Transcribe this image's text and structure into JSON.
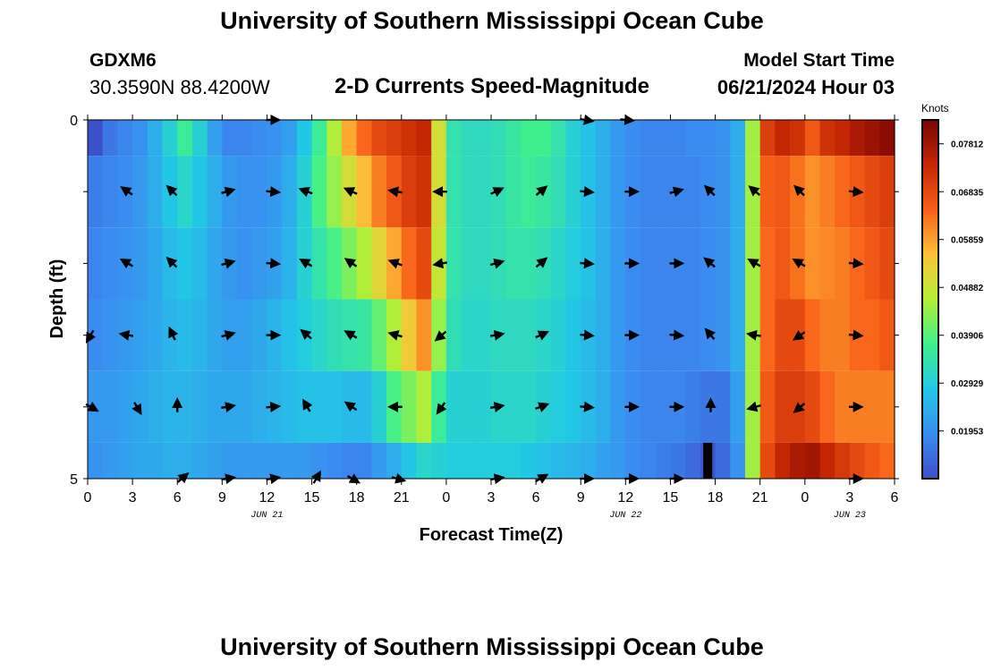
{
  "page": {
    "title": "University of Southern Mississippi Ocean Cube",
    "bottom_title": "University of Southern Mississippi Ocean Cube",
    "station_id": "GDXM6",
    "station_coords": "30.3590N  88.4200W",
    "subtitle": "2-D Currents Speed-Magnitude",
    "model_start_label": "Model Start Time",
    "model_start_value": "06/21/2024 Hour 03"
  },
  "chart_data": {
    "type": "heatmap",
    "title": "2-D Currents Speed-Magnitude",
    "xlabel": "Forecast Time(Z)",
    "ylabel": "Depth (ft)",
    "x_range_hours": [
      0,
      54
    ],
    "y_range": [
      0,
      5
    ],
    "y_tick_labels": [
      "0",
      "5"
    ],
    "x_tick_labels": [
      "0",
      "3",
      "6",
      "9",
      "12",
      "15",
      "18",
      "21",
      "0",
      "3",
      "6",
      "9",
      "12",
      "15",
      "18",
      "21",
      "0",
      "3",
      "6"
    ],
    "date_labels": [
      {
        "text": "JUN 21",
        "hour": 12
      },
      {
        "text": "JUN 22",
        "hour": 36
      },
      {
        "text": "JUN 23",
        "hour": 51
      }
    ],
    "colorbar": {
      "unit": "Knots",
      "min": 0.0098,
      "max": 0.083,
      "tick_labels": [
        "0.01953",
        "0.02929",
        "0.03906",
        "0.04882",
        "0.05859",
        "0.06835",
        "0.07812"
      ],
      "tick_values": [
        0.01953,
        0.02929,
        0.03906,
        0.04882,
        0.05859,
        0.06835,
        0.07812
      ],
      "colors": [
        "#3c4fc8",
        "#3a8cf0",
        "#22c8e6",
        "#3ff08c",
        "#b5ee35",
        "#fec23a",
        "#f76018",
        "#c42703",
        "#7a0403"
      ]
    },
    "column_hours": [
      0,
      1,
      2,
      3,
      4,
      5,
      6,
      7,
      8,
      9,
      10,
      11,
      12,
      13,
      14,
      15,
      16,
      17,
      18,
      19,
      20,
      21,
      22,
      23,
      24,
      25,
      26,
      27,
      28,
      29,
      30,
      31,
      32,
      33,
      34,
      35,
      36,
      37,
      38,
      39,
      40,
      41,
      42,
      43,
      44,
      45,
      46,
      47,
      48,
      49,
      50,
      51,
      52,
      53
    ],
    "layers": [
      {
        "depth_range": [
          0,
          0.5
        ],
        "speeds": [
          0.01,
          0.016,
          0.018,
          0.02,
          0.024,
          0.03,
          0.036,
          0.03,
          0.022,
          0.018,
          0.018,
          0.019,
          0.02,
          0.022,
          0.028,
          0.036,
          0.046,
          0.058,
          0.064,
          0.068,
          0.07,
          0.072,
          0.074,
          0.05,
          0.034,
          0.032,
          0.032,
          0.033,
          0.035,
          0.037,
          0.037,
          0.034,
          0.03,
          0.027,
          0.024,
          0.021,
          0.019,
          0.018,
          0.018,
          0.018,
          0.019,
          0.019,
          0.02,
          0.024,
          0.045,
          0.07,
          0.074,
          0.072,
          0.066,
          0.072,
          0.074,
          0.077,
          0.079,
          0.081
        ]
      },
      {
        "depth_range": [
          0.5,
          1.5
        ],
        "speeds": [
          0.017,
          0.018,
          0.019,
          0.021,
          0.024,
          0.028,
          0.031,
          0.028,
          0.024,
          0.021,
          0.02,
          0.02,
          0.021,
          0.024,
          0.03,
          0.038,
          0.044,
          0.05,
          0.056,
          0.062,
          0.066,
          0.07,
          0.072,
          0.05,
          0.034,
          0.032,
          0.032,
          0.033,
          0.035,
          0.036,
          0.035,
          0.033,
          0.03,
          0.027,
          0.024,
          0.021,
          0.019,
          0.018,
          0.018,
          0.018,
          0.018,
          0.019,
          0.02,
          0.024,
          0.045,
          0.065,
          0.066,
          0.063,
          0.06,
          0.062,
          0.064,
          0.066,
          0.068,
          0.07
        ]
      },
      {
        "depth_range": [
          1.5,
          2.5
        ],
        "speeds": [
          0.018,
          0.019,
          0.02,
          0.021,
          0.023,
          0.026,
          0.028,
          0.026,
          0.023,
          0.021,
          0.02,
          0.021,
          0.022,
          0.025,
          0.03,
          0.034,
          0.038,
          0.042,
          0.046,
          0.052,
          0.058,
          0.064,
          0.068,
          0.048,
          0.034,
          0.032,
          0.032,
          0.033,
          0.034,
          0.034,
          0.033,
          0.031,
          0.029,
          0.027,
          0.024,
          0.021,
          0.019,
          0.018,
          0.018,
          0.018,
          0.018,
          0.019,
          0.02,
          0.024,
          0.045,
          0.064,
          0.066,
          0.063,
          0.06,
          0.061,
          0.062,
          0.064,
          0.066,
          0.068
        ]
      },
      {
        "depth_range": [
          2.5,
          3.5
        ],
        "speeds": [
          0.019,
          0.02,
          0.021,
          0.022,
          0.023,
          0.025,
          0.026,
          0.025,
          0.023,
          0.022,
          0.022,
          0.023,
          0.025,
          0.027,
          0.029,
          0.031,
          0.033,
          0.034,
          0.035,
          0.04,
          0.046,
          0.054,
          0.06,
          0.044,
          0.033,
          0.031,
          0.031,
          0.032,
          0.032,
          0.032,
          0.031,
          0.03,
          0.028,
          0.026,
          0.024,
          0.021,
          0.019,
          0.018,
          0.018,
          0.018,
          0.018,
          0.019,
          0.02,
          0.024,
          0.045,
          0.064,
          0.068,
          0.068,
          0.064,
          0.062,
          0.062,
          0.064,
          0.064,
          0.066
        ]
      },
      {
        "depth_range": [
          3.5,
          4.5
        ],
        "speeds": [
          0.021,
          0.021,
          0.022,
          0.023,
          0.024,
          0.025,
          0.025,
          0.024,
          0.023,
          0.023,
          0.023,
          0.024,
          0.025,
          0.026,
          0.027,
          0.027,
          0.027,
          0.026,
          0.026,
          0.03,
          0.038,
          0.042,
          0.046,
          0.036,
          0.03,
          0.03,
          0.03,
          0.031,
          0.031,
          0.031,
          0.03,
          0.029,
          0.028,
          0.026,
          0.024,
          0.021,
          0.019,
          0.018,
          0.018,
          0.018,
          0.017,
          0.016,
          0.016,
          0.022,
          0.045,
          0.066,
          0.07,
          0.07,
          0.068,
          0.064,
          0.062,
          0.062,
          0.062,
          0.062
        ]
      },
      {
        "depth_range": [
          4.5,
          5
        ],
        "speeds": [
          0.02,
          0.021,
          0.022,
          0.023,
          0.023,
          0.024,
          0.024,
          0.023,
          0.022,
          0.021,
          0.021,
          0.021,
          0.021,
          0.021,
          0.021,
          0.02,
          0.019,
          0.018,
          0.018,
          0.021,
          0.024,
          0.028,
          0.031,
          0.03,
          0.029,
          0.029,
          0.029,
          0.029,
          0.029,
          0.028,
          0.027,
          0.026,
          0.025,
          0.024,
          0.022,
          0.021,
          0.019,
          0.018,
          0.017,
          0.016,
          0.014,
          0.011,
          0.014,
          0.02,
          0.045,
          0.068,
          0.074,
          0.077,
          0.078,
          0.074,
          0.071,
          0.068,
          0.066,
          0.064
        ]
      }
    ],
    "vectors": [
      {
        "hour": 12.3,
        "depth": 0,
        "angle": 0
      },
      {
        "hour": 33.3,
        "depth": 0,
        "angle": 10
      },
      {
        "hour": 36,
        "depth": 0,
        "angle": 5
      },
      {
        "hour": 2.7,
        "depth": 1,
        "angle": 215
      },
      {
        "hour": 5.7,
        "depth": 1,
        "angle": 225
      },
      {
        "hour": 9.3,
        "depth": 1,
        "angle": -15
      },
      {
        "hour": 12.3,
        "depth": 1,
        "angle": 5
      },
      {
        "hour": 14.7,
        "depth": 1,
        "angle": 200
      },
      {
        "hour": 17.7,
        "depth": 1,
        "angle": 205
      },
      {
        "hour": 20.7,
        "depth": 1,
        "angle": 190
      },
      {
        "hour": 23.7,
        "depth": 1,
        "angle": 180
      },
      {
        "hour": 27.3,
        "depth": 1,
        "angle": -25
      },
      {
        "hour": 30.3,
        "depth": 1,
        "angle": -40
      },
      {
        "hour": 33.3,
        "depth": 1,
        "angle": 5
      },
      {
        "hour": 36.3,
        "depth": 1,
        "angle": 0
      },
      {
        "hour": 39.3,
        "depth": 1,
        "angle": -15
      },
      {
        "hour": 41.7,
        "depth": 1,
        "angle": 225
      },
      {
        "hour": 44.7,
        "depth": 1,
        "angle": 220
      },
      {
        "hour": 47.7,
        "depth": 1,
        "angle": 225
      },
      {
        "hour": 51.3,
        "depth": 1,
        "angle": 5
      },
      {
        "hour": 2.7,
        "depth": 2,
        "angle": 210
      },
      {
        "hour": 5.7,
        "depth": 2,
        "angle": 225
      },
      {
        "hour": 9.3,
        "depth": 2,
        "angle": -15
      },
      {
        "hour": 12.3,
        "depth": 2,
        "angle": 5
      },
      {
        "hour": 14.7,
        "depth": 2,
        "angle": 210
      },
      {
        "hour": 17.7,
        "depth": 2,
        "angle": 215
      },
      {
        "hour": 20.7,
        "depth": 2,
        "angle": 200
      },
      {
        "hour": 23.7,
        "depth": 2,
        "angle": 170
      },
      {
        "hour": 27.3,
        "depth": 2,
        "angle": -15
      },
      {
        "hour": 30.3,
        "depth": 2,
        "angle": -40
      },
      {
        "hour": 33.3,
        "depth": 2,
        "angle": 5
      },
      {
        "hour": 36.3,
        "depth": 2,
        "angle": 0
      },
      {
        "hour": 39.3,
        "depth": 2,
        "angle": 0
      },
      {
        "hour": 41.7,
        "depth": 2,
        "angle": 220
      },
      {
        "hour": 44.7,
        "depth": 2,
        "angle": 210
      },
      {
        "hour": 47.7,
        "depth": 2,
        "angle": 210
      },
      {
        "hour": 51.3,
        "depth": 2,
        "angle": 5
      },
      {
        "hour": 0.2,
        "depth": 3,
        "angle": 120
      },
      {
        "hour": 2.7,
        "depth": 3,
        "angle": 190
      },
      {
        "hour": 5.7,
        "depth": 3,
        "angle": 245
      },
      {
        "hour": 9.3,
        "depth": 3,
        "angle": -15
      },
      {
        "hour": 12.3,
        "depth": 3,
        "angle": 0
      },
      {
        "hour": 14.7,
        "depth": 3,
        "angle": 220
      },
      {
        "hour": 17.7,
        "depth": 3,
        "angle": 210
      },
      {
        "hour": 20.7,
        "depth": 3,
        "angle": 195
      },
      {
        "hour": 23.7,
        "depth": 3,
        "angle": 140
      },
      {
        "hour": 27.3,
        "depth": 3,
        "angle": -10
      },
      {
        "hour": 30.3,
        "depth": 3,
        "angle": -25
      },
      {
        "hour": 33.3,
        "depth": 3,
        "angle": 5
      },
      {
        "hour": 36.3,
        "depth": 3,
        "angle": 0
      },
      {
        "hour": 39.3,
        "depth": 3,
        "angle": 5
      },
      {
        "hour": 41.7,
        "depth": 3,
        "angle": 230
      },
      {
        "hour": 44.7,
        "depth": 3,
        "angle": 190
      },
      {
        "hour": 47.7,
        "depth": 3,
        "angle": 145
      },
      {
        "hour": 51.3,
        "depth": 3,
        "angle": 5
      },
      {
        "hour": 0.2,
        "depth": 4,
        "angle": 30
      },
      {
        "hour": 3.3,
        "depth": 4,
        "angle": 60
      },
      {
        "hour": 6.0,
        "depth": 4,
        "angle": 270
      },
      {
        "hour": 9.3,
        "depth": 4,
        "angle": -10
      },
      {
        "hour": 12.3,
        "depth": 4,
        "angle": -5
      },
      {
        "hour": 14.7,
        "depth": 4,
        "angle": 240
      },
      {
        "hour": 17.7,
        "depth": 4,
        "angle": 215
      },
      {
        "hour": 20.7,
        "depth": 4,
        "angle": 180
      },
      {
        "hour": 23.7,
        "depth": 4,
        "angle": 125
      },
      {
        "hour": 27.3,
        "depth": 4,
        "angle": -10
      },
      {
        "hour": 30.3,
        "depth": 4,
        "angle": -20
      },
      {
        "hour": 33.3,
        "depth": 4,
        "angle": 5
      },
      {
        "hour": 36.3,
        "depth": 4,
        "angle": 0
      },
      {
        "hour": 39.3,
        "depth": 4,
        "angle": 0
      },
      {
        "hour": 41.7,
        "depth": 4,
        "angle": 270
      },
      {
        "hour": 44.7,
        "depth": 4,
        "angle": 165
      },
      {
        "hour": 47.7,
        "depth": 4,
        "angle": 140
      },
      {
        "hour": 51.3,
        "depth": 4,
        "angle": 0
      },
      {
        "hour": 6.3,
        "depth": 5,
        "angle": -40
      },
      {
        "hour": 9.3,
        "depth": 5,
        "angle": -10
      },
      {
        "hour": 12.3,
        "depth": 5,
        "angle": -10
      },
      {
        "hour": 15.3,
        "depth": 5,
        "angle": -60
      },
      {
        "hour": 17.7,
        "depth": 5,
        "angle": 30
      },
      {
        "hour": 20.7,
        "depth": 5,
        "angle": 15
      },
      {
        "hour": 27.3,
        "depth": 5,
        "angle": -10
      },
      {
        "hour": 30.3,
        "depth": 5,
        "angle": -30
      },
      {
        "hour": 33.3,
        "depth": 5,
        "angle": 0
      },
      {
        "hour": 36.3,
        "depth": 5,
        "angle": 0
      },
      {
        "hour": 39.3,
        "depth": 5,
        "angle": 0
      },
      {
        "hour": 51.3,
        "depth": 5,
        "angle": 0
      }
    ],
    "missing_data": [
      {
        "hour_range": [
          41.2,
          41.8
        ],
        "depth_range": [
          4.5,
          5
        ]
      }
    ]
  }
}
